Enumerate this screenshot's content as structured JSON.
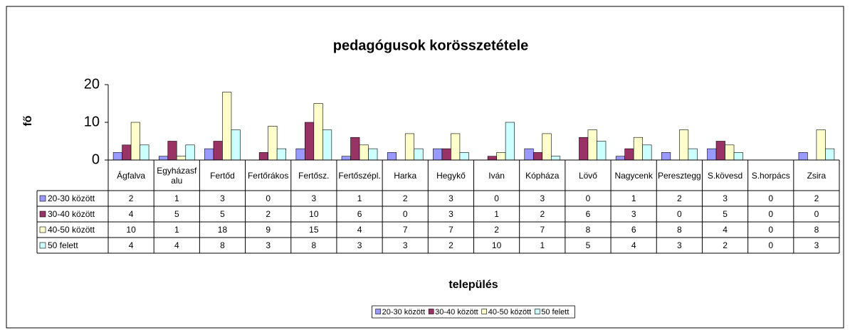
{
  "chart_data": {
    "type": "bar",
    "title": "pedagógusok korösszetétele",
    "x_label": "település",
    "y_label": "fő",
    "categories": [
      "Ágfalva",
      "Egyházasfalu",
      "Fertőd",
      "Fertőrákos",
      "Fertősz.",
      "Fertőszépl.",
      "Harka",
      "Hegykő",
      "Iván",
      "Kópháza",
      "Lövő",
      "Nagycenk",
      "Peresztegg",
      "S.kövesd",
      "S.horpács",
      "Zsira"
    ],
    "series": [
      {
        "name": "20-30 között",
        "color": "#9999ff",
        "values": [
          2,
          1,
          3,
          0,
          3,
          1,
          2,
          3,
          0,
          3,
          0,
          1,
          2,
          3,
          0,
          2
        ]
      },
      {
        "name": "30-40 között",
        "color": "#993366",
        "values": [
          4,
          5,
          5,
          2,
          10,
          6,
          0,
          3,
          1,
          2,
          6,
          3,
          0,
          5,
          0,
          0
        ]
      },
      {
        "name": "40-50 között",
        "color": "#ffffcc",
        "values": [
          10,
          1,
          18,
          9,
          15,
          4,
          7,
          7,
          2,
          7,
          8,
          6,
          8,
          4,
          0,
          8
        ]
      },
      {
        "name": "50 felett",
        "color": "#ccffff",
        "values": [
          4,
          4,
          8,
          3,
          8,
          3,
          3,
          2,
          10,
          1,
          5,
          4,
          3,
          2,
          0,
          3
        ]
      }
    ],
    "ylim": [
      0,
      20
    ],
    "yticks": [
      0,
      10,
      20
    ],
    "legend": "bottom"
  }
}
